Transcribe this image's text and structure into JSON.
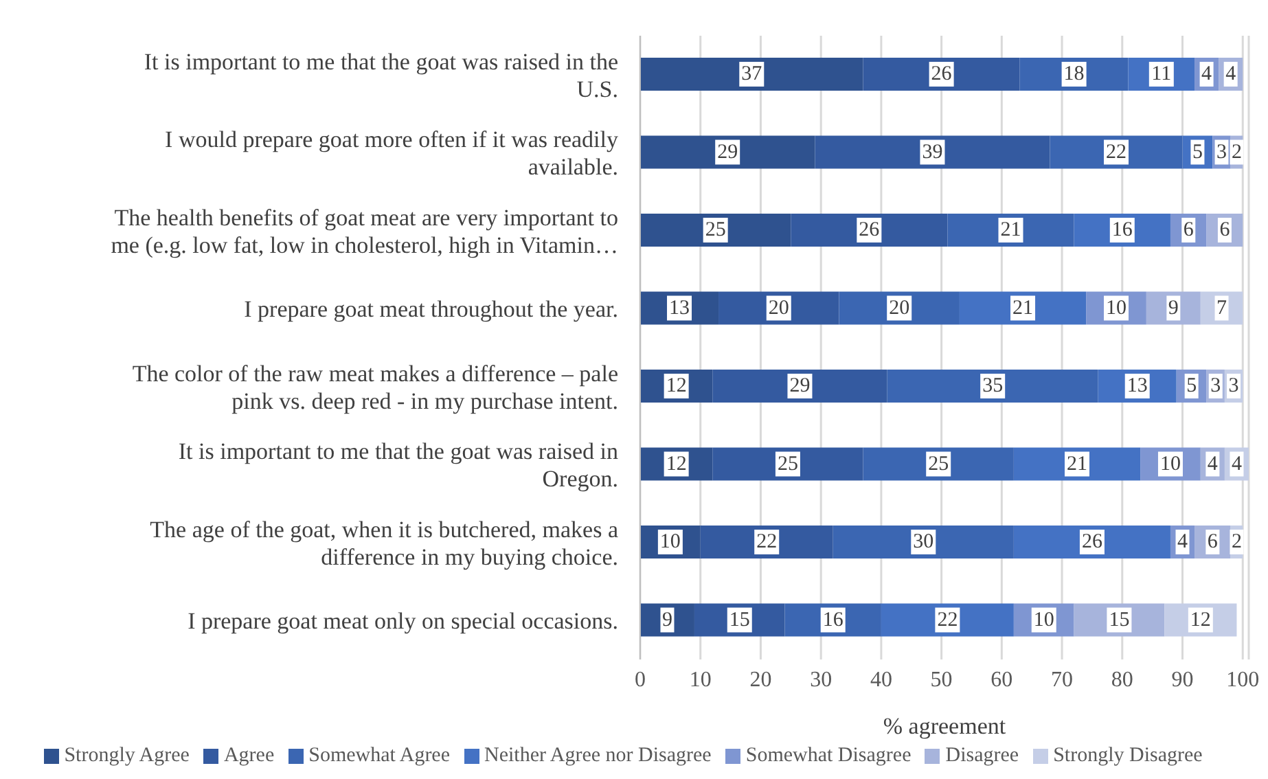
{
  "chart_data": {
    "type": "bar",
    "orientation": "horizontal",
    "stacked": true,
    "xlabel": "% agreement",
    "categories": [
      "It is important to me that the goat was raised in the U.S.",
      "I would prepare goat more often if it was readily available.",
      "The health benefits of goat meat are very important to me (e.g. low fat, low in cholesterol, high in Vitamin…",
      "I prepare goat meat throughout the year.",
      "The color of the raw meat makes a difference – pale pink vs. deep red - in my purchase intent.",
      "It is important to me that the goat was raised in Oregon.",
      "The age of the goat, when it is butchered, makes a difference in my buying choice.",
      "I prepare goat meat only on special occasions."
    ],
    "series": [
      {
        "name": "Strongly Agree",
        "color": "#2f528f",
        "values": [
          37,
          29,
          25,
          13,
          12,
          12,
          10,
          9
        ]
      },
      {
        "name": "Agree",
        "color": "#345aa0",
        "values": [
          26,
          39,
          26,
          20,
          29,
          25,
          22,
          15
        ]
      },
      {
        "name": "Somewhat Agree",
        "color": "#3b66b2",
        "values": [
          18,
          22,
          21,
          20,
          35,
          25,
          30,
          16
        ]
      },
      {
        "name": "Neither Agree nor Disagree",
        "color": "#4472c4",
        "values": [
          11,
          5,
          16,
          21,
          13,
          21,
          26,
          22
        ]
      },
      {
        "name": "Somewhat Disagree",
        "color": "#7f96d2",
        "values": [
          4,
          3,
          6,
          10,
          5,
          10,
          4,
          10
        ]
      },
      {
        "name": "Disagree",
        "color": "#a7b4dc",
        "values": [
          4,
          2,
          6,
          9,
          3,
          4,
          6,
          15
        ]
      },
      {
        "name": "Strongly Disagree",
        "color": "#c5cee7",
        "values": [
          0,
          0,
          0,
          7,
          3,
          4,
          2,
          12
        ],
        "value_labels": [
          null,
          null,
          null,
          "7",
          "3",
          "4",
          "2",
          "12"
        ]
      }
    ],
    "xlim": [
      0,
      101
    ],
    "xticks": [
      0,
      10,
      20,
      30,
      40,
      50,
      60,
      70,
      80,
      90,
      100
    ],
    "grid": "x",
    "legend": "bottom",
    "data_labels": true
  }
}
